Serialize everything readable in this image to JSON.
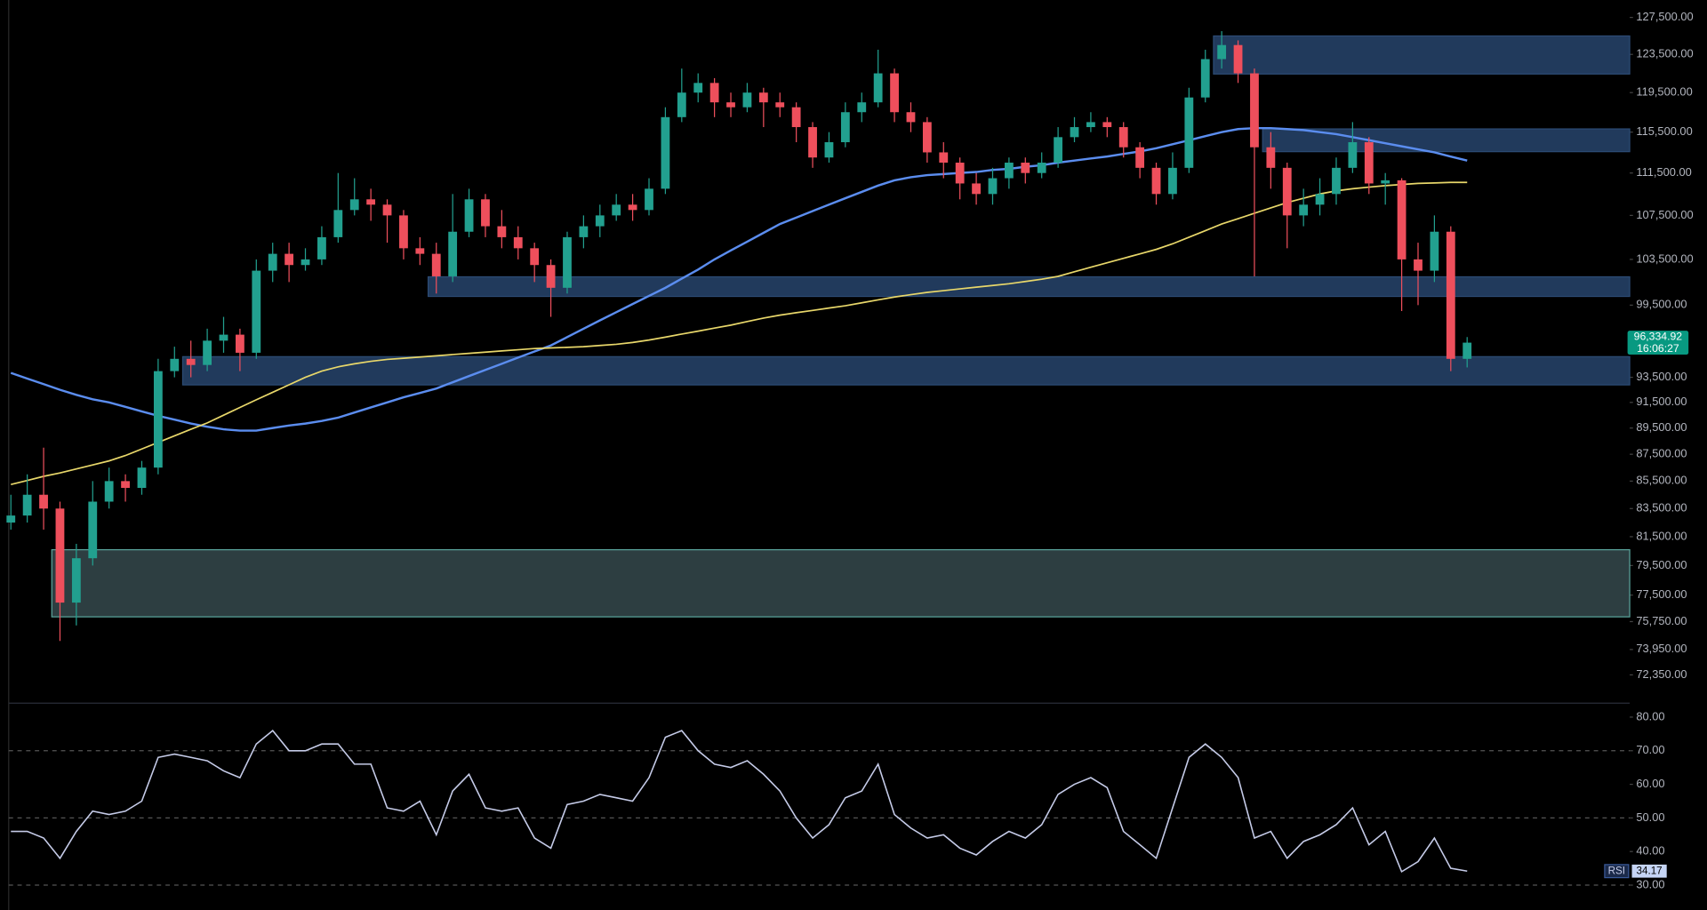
{
  "chart_data": [
    {
      "type": "candlestick",
      "log_scale": true,
      "ylim": [
        70673,
        129428
      ],
      "yticks": [
        {
          "value": 127500,
          "label": "127,500.00"
        },
        {
          "value": 123500,
          "label": "123,500.00"
        },
        {
          "value": 119500,
          "label": "119,500.00"
        },
        {
          "value": 115500,
          "label": "115,500.00"
        },
        {
          "value": 111500,
          "label": "111,500.00"
        },
        {
          "value": 107500,
          "label": "107,500.00"
        },
        {
          "value": 103500,
          "label": "103,500.00"
        },
        {
          "value": 99500,
          "label": "99,500.00"
        },
        {
          "value": 93500,
          "label": "93,500.00"
        },
        {
          "value": 91500,
          "label": "91,500.00"
        },
        {
          "value": 89500,
          "label": "89,500.00"
        },
        {
          "value": 87500,
          "label": "87,500.00"
        },
        {
          "value": 85500,
          "label": "85,500.00"
        },
        {
          "value": 83500,
          "label": "83,500.00"
        },
        {
          "value": 81500,
          "label": "81,500.00"
        },
        {
          "value": 79500,
          "label": "79,500.00"
        },
        {
          "value": 77500,
          "label": "77,500.00"
        },
        {
          "value": 75750,
          "label": "75,750.00"
        },
        {
          "value": 73950,
          "label": "73,950.00"
        },
        {
          "value": 72350,
          "label": "72,350.00"
        }
      ],
      "up_color": "#22a08f",
      "down_color": "#ee4f5c",
      "open": [
        82500,
        83000,
        84500,
        83500,
        77000,
        80000,
        84000,
        85500,
        85000,
        86500,
        94000,
        95000,
        94500,
        96500,
        97000,
        95500,
        102500,
        104000,
        103000,
        103500,
        105500,
        108000,
        109000,
        108500,
        107500,
        104500,
        104000,
        102000,
        106000,
        109000,
        106500,
        105500,
        104500,
        103000,
        101000,
        105500,
        106500,
        107500,
        108500,
        108000,
        110000,
        117000,
        119500,
        120500,
        118500,
        118000,
        119500,
        118500,
        118000,
        116000,
        113000,
        114500,
        117500,
        118500,
        121500,
        117500,
        116500,
        113500,
        112500,
        110500,
        109500,
        111000,
        112500,
        111500,
        112500,
        115000,
        116000,
        116500,
        116000,
        114000,
        112000,
        109500,
        112000,
        119000,
        123000,
        124500,
        121500,
        114000,
        112000,
        107500,
        108500,
        109500,
        112000,
        114500,
        110500,
        110800,
        103500,
        102500,
        106000,
        95000
      ],
      "close": [
        83000,
        84500,
        83500,
        77000,
        80000,
        84000,
        85500,
        85000,
        86500,
        94000,
        95000,
        94500,
        96500,
        97000,
        95500,
        102500,
        104000,
        103000,
        103500,
        105500,
        108000,
        109000,
        108500,
        107500,
        104500,
        104000,
        102000,
        106000,
        109000,
        106500,
        105500,
        104500,
        103000,
        101000,
        105500,
        106500,
        107500,
        108500,
        108000,
        110000,
        117000,
        119500,
        120500,
        118500,
        118000,
        119500,
        118500,
        118000,
        116000,
        113000,
        114500,
        117500,
        118500,
        121500,
        117500,
        116500,
        113500,
        112500,
        110500,
        109500,
        111000,
        112500,
        111500,
        112500,
        115000,
        116000,
        116500,
        116000,
        114000,
        112000,
        109500,
        112000,
        119000,
        123000,
        124500,
        121500,
        114000,
        112000,
        107500,
        108500,
        109500,
        112000,
        114500,
        110500,
        110800,
        103500,
        102500,
        106000,
        95000,
        96334.92
      ],
      "high": [
        84500,
        86000,
        88000,
        84000,
        81000,
        85500,
        86500,
        86000,
        87000,
        95000,
        96000,
        96500,
        97500,
        98500,
        97500,
        103500,
        105000,
        105000,
        104500,
        106500,
        111500,
        111000,
        110000,
        109000,
        108000,
        105500,
        105000,
        109500,
        110000,
        109500,
        108000,
        106500,
        105000,
        103500,
        106000,
        107500,
        108500,
        109500,
        109500,
        111000,
        118000,
        122000,
        121500,
        121000,
        119500,
        120500,
        120000,
        119500,
        118500,
        116500,
        115500,
        118500,
        119500,
        124000,
        122000,
        118500,
        117000,
        114500,
        113000,
        111500,
        112000,
        113000,
        113000,
        113500,
        116000,
        117000,
        117500,
        117000,
        116500,
        114500,
        112500,
        113500,
        120000,
        124000,
        126000,
        125000,
        122000,
        115500,
        112500,
        110000,
        111000,
        113000,
        116500,
        115000,
        111500,
        111000,
        105000,
        107500,
        106500,
        96800
      ],
      "low": [
        82000,
        82500,
        82000,
        74500,
        75500,
        79500,
        83500,
        84000,
        84500,
        86000,
        93500,
        93500,
        94000,
        95500,
        94000,
        95000,
        101500,
        101500,
        102500,
        103000,
        105000,
        107500,
        107000,
        105000,
        103500,
        103000,
        100500,
        101500,
        105500,
        105500,
        104500,
        103500,
        101500,
        98500,
        100500,
        104500,
        105500,
        107000,
        107000,
        107500,
        109500,
        116500,
        118500,
        117000,
        117000,
        117500,
        116000,
        117000,
        114500,
        112000,
        112500,
        114000,
        116500,
        118000,
        116500,
        115500,
        112500,
        111000,
        109000,
        108500,
        108500,
        110000,
        110500,
        111000,
        112000,
        114500,
        115500,
        115000,
        113000,
        111000,
        108500,
        109000,
        111500,
        118500,
        122000,
        120500,
        102000,
        110000,
        104500,
        106500,
        107500,
        108500,
        111500,
        109500,
        108500,
        99000,
        99500,
        101500,
        94000,
        94300
      ],
      "lines": [
        {
          "color": "#5b8def",
          "values": [
            93850,
            93400,
            92950,
            92500,
            92100,
            91750,
            91500,
            91150,
            90800,
            90450,
            90150,
            89850,
            89600,
            89400,
            89300,
            89300,
            89500,
            89700,
            89850,
            90050,
            90300,
            90700,
            91100,
            91500,
            91900,
            92250,
            92600,
            93100,
            93600,
            94100,
            94600,
            95100,
            95600,
            96100,
            96800,
            97500,
            98200,
            98900,
            99600,
            100300,
            101000,
            101800,
            102600,
            103500,
            104300,
            105100,
            105900,
            106700,
            107300,
            107900,
            108500,
            109100,
            109700,
            110300,
            110800,
            111100,
            111300,
            111400,
            111500,
            111600,
            111800,
            111900,
            112100,
            112250,
            112500,
            112700,
            112900,
            113100,
            113350,
            113600,
            113900,
            114300,
            114700,
            115100,
            115500,
            115800,
            115900,
            115900,
            115800,
            115700,
            115500,
            115300,
            115000,
            114700,
            114400,
            114100,
            113800,
            113500,
            113100,
            112700
          ]
        },
        {
          "color": "#e8d76a",
          "values": [
            85250,
            85550,
            85850,
            86100,
            86400,
            86700,
            87000,
            87400,
            87900,
            88400,
            88900,
            89400,
            89900,
            90500,
            91100,
            91700,
            92300,
            92900,
            93500,
            94000,
            94350,
            94600,
            94800,
            94950,
            95050,
            95150,
            95250,
            95350,
            95450,
            95550,
            95650,
            95750,
            95850,
            95900,
            95950,
            96000,
            96100,
            96200,
            96350,
            96550,
            96800,
            97050,
            97300,
            97550,
            97800,
            98100,
            98400,
            98650,
            98850,
            99050,
            99250,
            99450,
            99700,
            99950,
            100200,
            100400,
            100600,
            100750,
            100900,
            101050,
            101200,
            101350,
            101550,
            101750,
            102000,
            102400,
            102800,
            103200,
            103600,
            104000,
            104400,
            104900,
            105500,
            106100,
            106700,
            107200,
            107700,
            108200,
            108700,
            109100,
            109500,
            109800,
            110000,
            110150,
            110300,
            110400,
            110500,
            110550,
            110600,
            110600
          ]
        }
      ],
      "zones": [
        {
          "start": 74,
          "low": 121430,
          "high": 125480,
          "color": "#213a5c",
          "border_color": "#2c4b74"
        },
        {
          "start": 77,
          "low": 113570,
          "high": 115820,
          "color": "#213a5c",
          "border_color": "#2c4b74"
        },
        {
          "start": 26,
          "low": 100250,
          "high": 101960,
          "color": "#213a5c",
          "border_color": "#2c4b74"
        },
        {
          "start": 11,
          "low": 92890,
          "high": 95180,
          "color": "#213a5c",
          "border_color": "#2c4b74"
        },
        {
          "start": 3,
          "low": 76060,
          "high": 80590,
          "color": "#2d3e41",
          "border_color": "#5aa59c"
        }
      ],
      "last_price": {
        "value": 96334.92,
        "label": "96,334.92"
      },
      "countdown": "16:06:27",
      "last_price_color": "#089981"
    },
    {
      "type": "line",
      "title": "RSI",
      "color": "#c5cbe8",
      "ylim": [
        22.6,
        83.5
      ],
      "yticks": [
        {
          "value": 80,
          "label": "80.00"
        },
        {
          "value": 70,
          "label": "70.00"
        },
        {
          "value": 60,
          "label": "60.00"
        },
        {
          "value": 50,
          "label": "50.00"
        },
        {
          "value": 40,
          "label": "40.00"
        },
        {
          "value": 30,
          "label": "30.00"
        }
      ],
      "reference_lines": [
        70,
        50,
        30
      ],
      "values": [
        46,
        46,
        44,
        38,
        46,
        52,
        51,
        52,
        55,
        68,
        69,
        68,
        67,
        64,
        62,
        72,
        76,
        70,
        70,
        72,
        72,
        66,
        66,
        53,
        52,
        55,
        45,
        58,
        63,
        53,
        52,
        53,
        44,
        41,
        54,
        55,
        57,
        56,
        55,
        62,
        74,
        76,
        70,
        66,
        65,
        67,
        63,
        58,
        50,
        44,
        48,
        56,
        58,
        66,
        51,
        47,
        44,
        45,
        41,
        39,
        43,
        46,
        44,
        48,
        57,
        60,
        62,
        59,
        46,
        42,
        38,
        53,
        68,
        72,
        68,
        62,
        44,
        46,
        38,
        43,
        45,
        48,
        53,
        42,
        46,
        34,
        37,
        44,
        35,
        34.17
      ]
    }
  ]
}
